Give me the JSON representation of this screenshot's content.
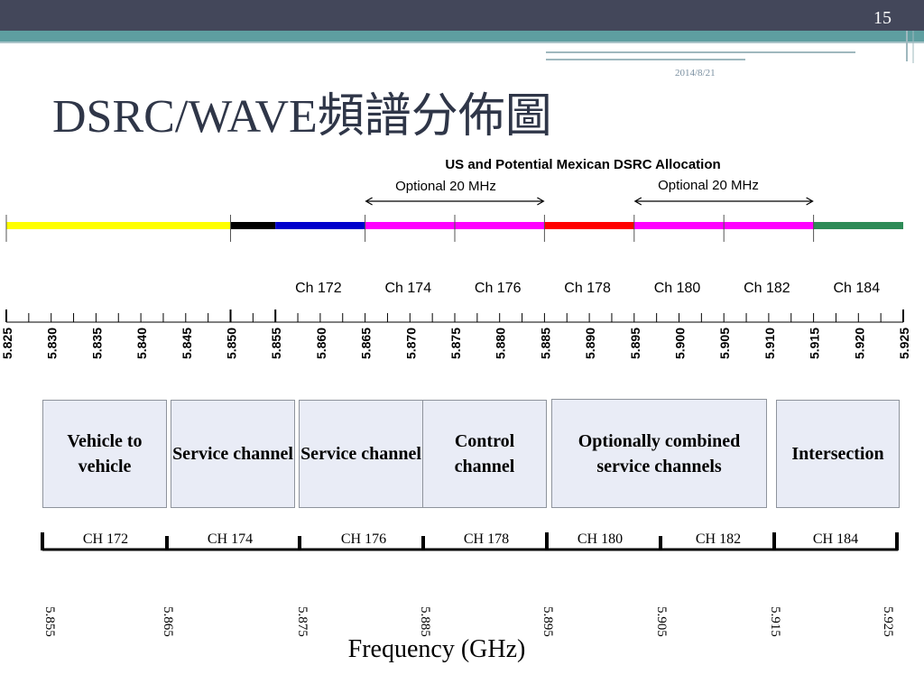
{
  "slide": {
    "page_number": "15",
    "date": "2014/8/21",
    "title": "DSRC/WAVE頻譜分佈圖"
  },
  "colors": {
    "top_bar": "#43475a",
    "teal_bar": "#5e9ea0",
    "box_fill": "#e9ecf6",
    "box_border": "#8e939c"
  },
  "figure": {
    "title": "US and Potential Mexican DSRC Allocation",
    "optional_labels": [
      "Optional 20 MHz",
      "Optional 20 MHz"
    ],
    "bands": [
      {
        "from": 5.825,
        "to": 5.85,
        "color": "#ffff00"
      },
      {
        "from": 5.85,
        "to": 5.855,
        "color": "#000000"
      },
      {
        "from": 5.855,
        "to": 5.865,
        "color": "#0000cc"
      },
      {
        "from": 5.865,
        "to": 5.885,
        "color": "#ff00ff"
      },
      {
        "from": 5.885,
        "to": 5.895,
        "color": "#ff0000"
      },
      {
        "from": 5.895,
        "to": 5.915,
        "color": "#ff00ff"
      },
      {
        "from": 5.915,
        "to": 5.925,
        "color": "#2e8b57"
      }
    ],
    "channels": [
      "Ch 172",
      "Ch 174",
      "Ch 176",
      "Ch 178",
      "Ch 180",
      "Ch 182",
      "Ch 184"
    ],
    "ticks": [
      "5.825",
      "5.830",
      "5.835",
      "5.840",
      "5.845",
      "5.850",
      "5.855",
      "5.860",
      "5.865",
      "5.870",
      "5.875",
      "5.880",
      "5.885",
      "5.890",
      "5.895",
      "5.900",
      "5.905",
      "5.910",
      "5.915",
      "5.920",
      "5.925"
    ]
  },
  "boxes": [
    {
      "label": "Vehicle to vehicle"
    },
    {
      "label": "Service channel"
    },
    {
      "label": "Service channel"
    },
    {
      "label": "Control channel"
    },
    {
      "label": "Optionally combined service channels"
    },
    {
      "label": "Intersection"
    }
  ],
  "lower_channels": [
    "CH 172",
    "CH 174",
    "CH 176",
    "CH 178",
    "CH 180",
    "CH 182",
    "CH 184"
  ],
  "lower_freqs": [
    "5.855",
    "5.865",
    "5.875",
    "5.885",
    "5.895",
    "5.905",
    "5.915",
    "5.925"
  ],
  "axis_title": "Frequency (GHz)"
}
